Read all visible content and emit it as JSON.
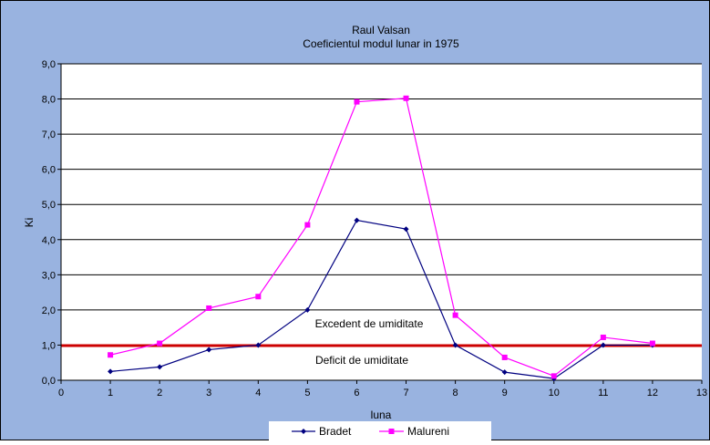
{
  "chart_data": {
    "type": "line",
    "title": "Raul Valsan",
    "subtitle": "Coeficientul modul lunar in 1975",
    "xlabel": "luna",
    "ylabel": "Ki",
    "xlim": [
      0,
      13
    ],
    "ylim": [
      0,
      9
    ],
    "x_ticks": [
      "0",
      "1",
      "2",
      "3",
      "4",
      "5",
      "6",
      "7",
      "8",
      "9",
      "10",
      "11",
      "12",
      "13"
    ],
    "y_ticks": [
      "0,0",
      "1,0",
      "2,0",
      "3,0",
      "4,0",
      "5,0",
      "6,0",
      "7,0",
      "8,0",
      "9,0"
    ],
    "grid": true,
    "legend_position": "bottom",
    "x": [
      1,
      2,
      3,
      4,
      5,
      6,
      7,
      8,
      9,
      10,
      11,
      12
    ],
    "series": [
      {
        "name": "Bradet",
        "color": "#000080",
        "marker": "diamond",
        "values": [
          0.25,
          0.38,
          0.87,
          1.0,
          2.0,
          4.55,
          4.3,
          1.0,
          0.23,
          0.05,
          1.0,
          1.0
        ]
      },
      {
        "name": "Malureni",
        "color": "#ff00ff",
        "marker": "square",
        "values": [
          0.72,
          1.05,
          2.05,
          2.38,
          4.42,
          7.92,
          8.02,
          1.85,
          0.65,
          0.12,
          1.22,
          1.05
        ]
      }
    ],
    "reference_line": {
      "y": 1.0,
      "color": "#cc0000"
    },
    "annotations": [
      "Excedent de umiditate",
      "Deficit de umiditate"
    ],
    "colors": {
      "background": "#99b3e0",
      "plot_area": "#ffffff",
      "gridline": "#000000"
    }
  }
}
